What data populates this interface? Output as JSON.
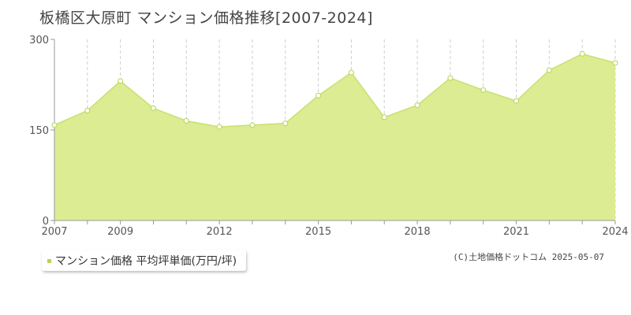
{
  "page": {
    "title": "板橋区大原町 マンション価格推移[2007-2024]"
  },
  "chart_data": {
    "type": "area",
    "title": "板橋区大原町 マンション価格推移[2007-2024]",
    "x": [
      2007,
      2008,
      2009,
      2010,
      2011,
      2012,
      2013,
      2014,
      2015,
      2016,
      2017,
      2018,
      2019,
      2020,
      2021,
      2022,
      2023,
      2024
    ],
    "x_tick_labels": [
      "2007",
      "2009",
      "2012",
      "2015",
      "2018",
      "2021",
      "2024"
    ],
    "y_tick_labels": [
      "0",
      "150",
      "300"
    ],
    "ylim": [
      0,
      300
    ],
    "series": [
      {
        "name": "マンション価格 平均坪単価(万円/坪)",
        "values": [
          158,
          182,
          231,
          186,
          165,
          155,
          158,
          161,
          207,
          245,
          171,
          191,
          236,
          216,
          198,
          249,
          276,
          261
        ]
      }
    ],
    "grid": "vertical dashed at each year; horizontal dashed at 150",
    "legend": "bottom-left",
    "colors": {
      "fill": "#dcec92",
      "line": "#c8e070",
      "marker": "#b4d455",
      "grid": "#cfcfcf",
      "axis": "#999999"
    }
  },
  "legend": {
    "label": "マンション価格 平均坪単価(万円/坪)"
  },
  "footer": {
    "source": "(C)土地価格ドットコム 2025-05-07"
  }
}
